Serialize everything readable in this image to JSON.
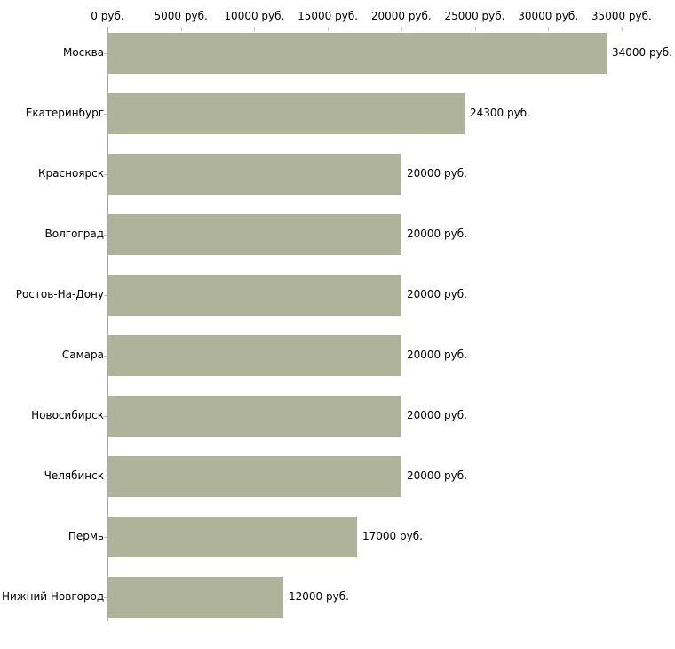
{
  "chart_data": {
    "type": "bar",
    "orientation": "horizontal",
    "title": "",
    "xlabel": "",
    "ylabel": "",
    "categories": [
      "Москва",
      "Екатеринбург",
      "Красноярск",
      "Волгоград",
      "Ростов-На-Дону",
      "Самара",
      "Новосибирск",
      "Челябинск",
      "Пермь",
      "Нижний Новгород"
    ],
    "values": [
      34000,
      24300,
      20000,
      20000,
      20000,
      20000,
      20000,
      20000,
      17000,
      12000
    ],
    "value_labels": [
      "34000 руб.",
      "24300 руб.",
      "20000 руб.",
      "20000 руб.",
      "20000 руб.",
      "20000 руб.",
      "20000 руб.",
      "20000 руб.",
      "17000 руб.",
      "12000 руб."
    ],
    "x_axis": {
      "position": "top",
      "tick_values": [
        0,
        5000,
        10000,
        15000,
        20000,
        25000,
        30000,
        35000
      ],
      "tick_labels": [
        "0 руб.",
        "5000 руб.",
        "10000 руб.",
        "15000 руб.",
        "20000 руб.",
        "25000 руб.",
        "30000 руб.",
        "35000 руб."
      ],
      "xlim": [
        0,
        35000
      ]
    },
    "grid": false,
    "legend": false,
    "colors": {
      "bar_fill": "#aeb399",
      "axis_line": "#bcbcbc",
      "left_axis_line": "#a9a9a9",
      "tick_mark": "#c6ca9e",
      "text": "#000000",
      "background": "#ffffff"
    }
  }
}
